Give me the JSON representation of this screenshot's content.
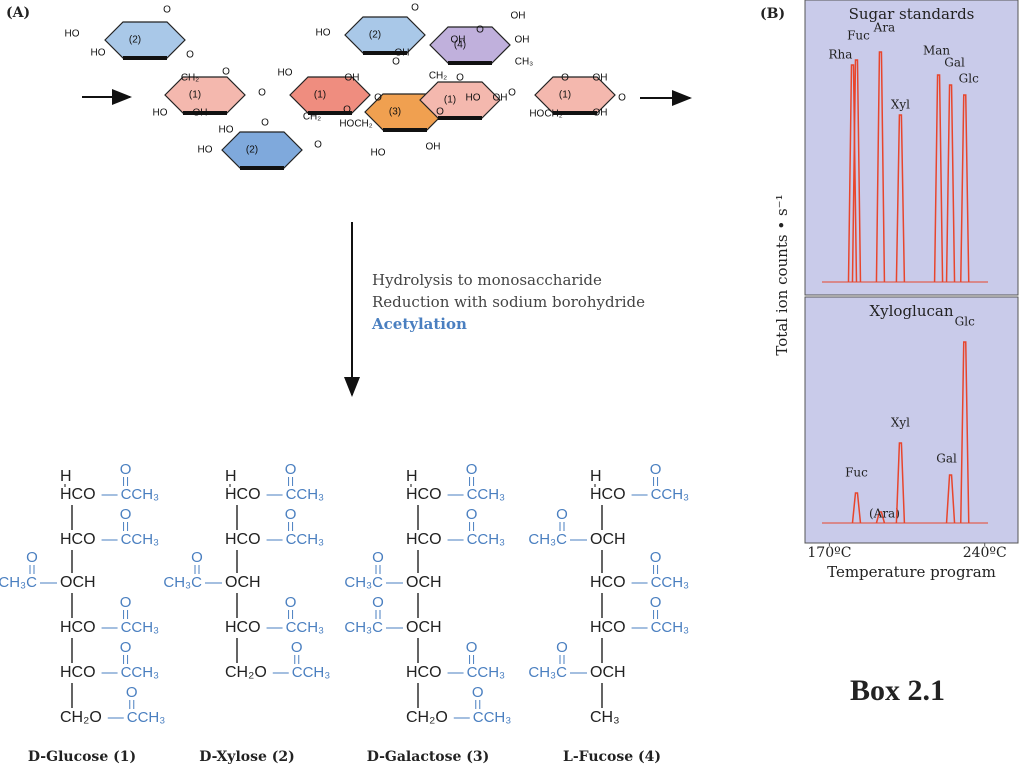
{
  "panel_a": {
    "label": "(A)",
    "rings": [
      "(2)",
      "(1)",
      "(2)",
      "(1)",
      "(2)",
      "(4)",
      "(3)",
      "(1)",
      "(1)"
    ],
    "ring_labels": [
      "HO",
      "HO",
      "O",
      "O",
      "CH₂",
      "O",
      "HO",
      "OH",
      "O",
      "HO",
      "OH",
      "CH₂",
      "O",
      "O",
      "HO",
      "O",
      "HO",
      "O",
      "HO",
      "O",
      "OH",
      "O",
      "OH",
      "O",
      "OH",
      "OH",
      "CH₃",
      "CH₂",
      "O",
      "HO",
      "OH",
      "O",
      "O",
      "OH",
      "HOCH₂",
      "OH",
      "O",
      "HOCH₂",
      "HO",
      "OH",
      "O"
    ],
    "steps": [
      "Hydrolysis to monosaccharide",
      "Reduction with sodium borohydride",
      "Acetylation"
    ],
    "structures": [
      {
        "name": "D-Glucose (1)",
        "top": "H",
        "carbonyl": "O",
        "rows": [
          {
            "center": "HCO",
            "right": "CCH₃"
          },
          {
            "center": "HCO",
            "right": "CCH₃"
          },
          {
            "left": "CH₃C",
            "center": "OCH"
          },
          {
            "center": "HCO",
            "right": "CCH₃"
          },
          {
            "center": "HCO",
            "right": "CCH₃"
          },
          {
            "center": "CH₂O",
            "right": "CCH₃"
          }
        ]
      },
      {
        "name": "D-Xylose (2)",
        "top": "H",
        "carbonyl": "O",
        "rows": [
          {
            "center": "HCO",
            "right": "CCH₃"
          },
          {
            "center": "HCO",
            "right": "CCH₃"
          },
          {
            "left": "CH₃C",
            "center": "OCH"
          },
          {
            "center": "HCO",
            "right": "CCH₃"
          },
          {
            "center": "CH₂O",
            "right": "CCH₃"
          }
        ]
      },
      {
        "name": "D-Galactose (3)",
        "top": "H",
        "carbonyl": "O",
        "rows": [
          {
            "center": "HCO",
            "right": "CCH₃"
          },
          {
            "center": "HCO",
            "right": "CCH₃"
          },
          {
            "left": "CH₃C",
            "center": "OCH"
          },
          {
            "left": "CH₃C",
            "center": "OCH"
          },
          {
            "center": "HCO",
            "right": "CCH₃"
          },
          {
            "center": "CH₂O",
            "right": "CCH₃"
          }
        ]
      },
      {
        "name": "L-Fucose (4)",
        "top": "H",
        "carbonyl": "O",
        "rows": [
          {
            "center": "HCO",
            "right": "CCH₃"
          },
          {
            "left": "CH₃C",
            "center": "OCH"
          },
          {
            "center": "HCO",
            "right": "CCH₃"
          },
          {
            "center": "HCO",
            "right": "CCH₃"
          },
          {
            "left": "CH₃C",
            "center": "OCH"
          },
          {
            "center": "CH₃"
          }
        ]
      }
    ]
  },
  "panel_b": {
    "label": "(B)",
    "type": "peaks",
    "y_label": "Total ion counts • s⁻¹",
    "x_label": "Temperature program",
    "xlim": [
      159,
      255
    ],
    "xticks": [
      {
        "value": 170,
        "label": "170ºC"
      },
      {
        "value": 240,
        "label": "240ºC"
      }
    ],
    "ylim": [
      0,
      250
    ],
    "color": "#e8452c",
    "panels": [
      {
        "title": "Sugar standards",
        "names": [
          "Rha",
          "Fuc",
          "Ara",
          "Xyl",
          "Man",
          "Gal",
          "Glc"
        ],
        "x": [
          180.4,
          182.2,
          193,
          202,
          219.2,
          224.6,
          231
        ],
        "values": [
          217,
          222,
          230,
          167,
          207,
          197,
          187
        ]
      },
      {
        "title": "Xyloglucan",
        "names": [
          "Fuc",
          "(Ara)",
          "Xyl",
          "Gal",
          "Glc"
        ],
        "x": [
          182.2,
          193,
          202,
          224.6,
          231
        ],
        "values": [
          30,
          11,
          80,
          48,
          181
        ]
      }
    ]
  },
  "box_label": "Box 2.1"
}
